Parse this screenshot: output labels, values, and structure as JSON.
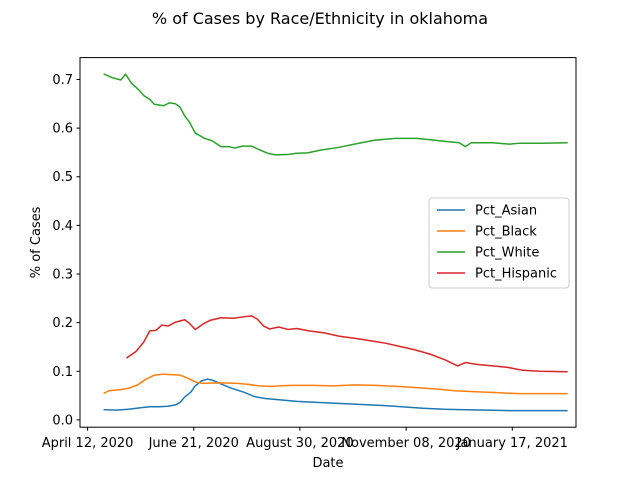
{
  "chart_data": {
    "type": "line",
    "title": "% of Cases by Race/Ethnicity in oklahoma",
    "xlabel": "Date",
    "ylabel": "% of Cases",
    "ylim": [
      -0.015,
      0.745
    ],
    "xlim": [
      "2020-04-07",
      "2021-02-28"
    ],
    "yticks": [
      "0.0",
      "0.1",
      "0.2",
      "0.3",
      "0.4",
      "0.5",
      "0.6",
      "0.7"
    ],
    "xticks": [
      {
        "date": "2020-04-12",
        "label": "April 12, 2020"
      },
      {
        "date": "2020-06-21",
        "label": "June 21, 2020"
      },
      {
        "date": "2020-08-30",
        "label": "August 30, 2020"
      },
      {
        "date": "2020-11-08",
        "label": "November 08, 2020"
      },
      {
        "date": "2021-01-17",
        "label": "January 17, 2021"
      }
    ],
    "legend_position": "center-right",
    "grid": false,
    "series": [
      {
        "name": "Pct_Asian",
        "color": "#1f77b4",
        "points": [
          [
            "2020-04-23",
            0.021
          ],
          [
            "2020-05-01",
            0.02
          ],
          [
            "2020-05-09",
            0.022
          ],
          [
            "2020-05-17",
            0.025
          ],
          [
            "2020-05-23",
            0.027
          ],
          [
            "2020-05-29",
            0.027
          ],
          [
            "2020-06-04",
            0.028
          ],
          [
            "2020-06-09",
            0.031
          ],
          [
            "2020-06-12",
            0.036
          ],
          [
            "2020-06-15",
            0.047
          ],
          [
            "2020-06-19",
            0.057
          ],
          [
            "2020-06-22",
            0.07
          ],
          [
            "2020-06-26",
            0.08
          ],
          [
            "2020-06-30",
            0.084
          ],
          [
            "2020-07-04",
            0.081
          ],
          [
            "2020-07-09",
            0.074
          ],
          [
            "2020-07-16",
            0.065
          ],
          [
            "2020-07-24",
            0.057
          ],
          [
            "2020-07-31",
            0.048
          ],
          [
            "2020-08-07",
            0.044
          ],
          [
            "2020-08-18",
            0.041
          ],
          [
            "2020-08-28",
            0.038
          ],
          [
            "2020-09-10",
            0.036
          ],
          [
            "2020-09-24",
            0.034
          ],
          [
            "2020-10-08",
            0.032
          ],
          [
            "2020-10-22",
            0.03
          ],
          [
            "2020-11-05",
            0.027
          ],
          [
            "2020-11-19",
            0.024
          ],
          [
            "2020-12-03",
            0.022
          ],
          [
            "2020-12-17",
            0.021
          ],
          [
            "2021-01-01",
            0.02
          ],
          [
            "2021-01-15",
            0.019
          ],
          [
            "2021-02-01",
            0.019
          ],
          [
            "2021-02-22",
            0.019
          ]
        ]
      },
      {
        "name": "Pct_Black",
        "color": "#ff7f0e",
        "points": [
          [
            "2020-04-23",
            0.055
          ],
          [
            "2020-04-26",
            0.06
          ],
          [
            "2020-05-03",
            0.062
          ],
          [
            "2020-05-09",
            0.065
          ],
          [
            "2020-05-15",
            0.072
          ],
          [
            "2020-05-20",
            0.083
          ],
          [
            "2020-05-26",
            0.092
          ],
          [
            "2020-06-01",
            0.094
          ],
          [
            "2020-06-06",
            0.093
          ],
          [
            "2020-06-12",
            0.092
          ],
          [
            "2020-06-17",
            0.086
          ],
          [
            "2020-06-22",
            0.078
          ],
          [
            "2020-06-27",
            0.075
          ],
          [
            "2020-07-04",
            0.076
          ],
          [
            "2020-07-12",
            0.076
          ],
          [
            "2020-07-20",
            0.075
          ],
          [
            "2020-07-27",
            0.073
          ],
          [
            "2020-08-03",
            0.07
          ],
          [
            "2020-08-10",
            0.069
          ],
          [
            "2020-08-17",
            0.07
          ],
          [
            "2020-08-24",
            0.071
          ],
          [
            "2020-09-07",
            0.071
          ],
          [
            "2020-09-21",
            0.07
          ],
          [
            "2020-10-05",
            0.072
          ],
          [
            "2020-10-19",
            0.071
          ],
          [
            "2020-11-02",
            0.069
          ],
          [
            "2020-11-16",
            0.066
          ],
          [
            "2020-11-30",
            0.063
          ],
          [
            "2020-12-10",
            0.06
          ],
          [
            "2020-12-24",
            0.058
          ],
          [
            "2021-01-07",
            0.056
          ],
          [
            "2021-01-21",
            0.054
          ],
          [
            "2021-02-04",
            0.054
          ],
          [
            "2021-02-22",
            0.054
          ]
        ]
      },
      {
        "name": "Pct_White",
        "color": "#2ca02c",
        "points": [
          [
            "2020-04-23",
            0.711
          ],
          [
            "2020-04-28",
            0.704
          ],
          [
            "2020-05-04",
            0.699
          ],
          [
            "2020-05-07",
            0.711
          ],
          [
            "2020-05-11",
            0.692
          ],
          [
            "2020-05-16",
            0.678
          ],
          [
            "2020-05-19",
            0.667
          ],
          [
            "2020-05-23",
            0.659
          ],
          [
            "2020-05-26",
            0.649
          ],
          [
            "2020-06-01",
            0.646
          ],
          [
            "2020-06-05",
            0.652
          ],
          [
            "2020-06-09",
            0.65
          ],
          [
            "2020-06-12",
            0.643
          ],
          [
            "2020-06-15",
            0.625
          ],
          [
            "2020-06-18",
            0.613
          ],
          [
            "2020-06-22",
            0.59
          ],
          [
            "2020-06-28",
            0.579
          ],
          [
            "2020-07-03",
            0.574
          ],
          [
            "2020-07-09",
            0.562
          ],
          [
            "2020-07-14",
            0.562
          ],
          [
            "2020-07-18",
            0.559
          ],
          [
            "2020-07-23",
            0.563
          ],
          [
            "2020-07-29",
            0.563
          ],
          [
            "2020-08-03",
            0.556
          ],
          [
            "2020-08-09",
            0.548
          ],
          [
            "2020-08-14",
            0.545
          ],
          [
            "2020-08-23",
            0.546
          ],
          [
            "2020-08-27",
            0.548
          ],
          [
            "2020-09-04",
            0.549
          ],
          [
            "2020-09-13",
            0.555
          ],
          [
            "2020-09-24",
            0.56
          ],
          [
            "2020-10-05",
            0.567
          ],
          [
            "2020-10-18",
            0.575
          ],
          [
            "2020-11-01",
            0.579
          ],
          [
            "2020-11-15",
            0.579
          ],
          [
            "2020-11-24",
            0.576
          ],
          [
            "2020-12-03",
            0.573
          ],
          [
            "2020-12-13",
            0.57
          ],
          [
            "2020-12-17",
            0.562
          ],
          [
            "2020-12-21",
            0.57
          ],
          [
            "2021-01-04",
            0.57
          ],
          [
            "2021-01-15",
            0.567
          ],
          [
            "2021-01-22",
            0.569
          ],
          [
            "2021-02-05",
            0.569
          ],
          [
            "2021-02-22",
            0.57
          ]
        ]
      },
      {
        "name": "Pct_Hispanic",
        "color": "#d62728",
        "points": [
          [
            "2020-05-08",
            0.128
          ],
          [
            "2020-05-14",
            0.141
          ],
          [
            "2020-05-19",
            0.16
          ],
          [
            "2020-05-23",
            0.183
          ],
          [
            "2020-05-27",
            0.184
          ],
          [
            "2020-05-31",
            0.195
          ],
          [
            "2020-06-04",
            0.193
          ],
          [
            "2020-06-09",
            0.201
          ],
          [
            "2020-06-15",
            0.206
          ],
          [
            "2020-06-18",
            0.199
          ],
          [
            "2020-06-22",
            0.186
          ],
          [
            "2020-06-27",
            0.197
          ],
          [
            "2020-07-02",
            0.205
          ],
          [
            "2020-07-09",
            0.21
          ],
          [
            "2020-07-17",
            0.209
          ],
          [
            "2020-07-24",
            0.212
          ],
          [
            "2020-07-29",
            0.214
          ],
          [
            "2020-08-02",
            0.207
          ],
          [
            "2020-08-06",
            0.193
          ],
          [
            "2020-08-10",
            0.187
          ],
          [
            "2020-08-16",
            0.191
          ],
          [
            "2020-08-22",
            0.186
          ],
          [
            "2020-08-28",
            0.188
          ],
          [
            "2020-09-05",
            0.183
          ],
          [
            "2020-09-15",
            0.179
          ],
          [
            "2020-09-25",
            0.172
          ],
          [
            "2020-10-05",
            0.168
          ],
          [
            "2020-10-15",
            0.163
          ],
          [
            "2020-10-25",
            0.158
          ],
          [
            "2020-11-04",
            0.151
          ],
          [
            "2020-11-14",
            0.144
          ],
          [
            "2020-11-24",
            0.135
          ],
          [
            "2020-12-04",
            0.123
          ],
          [
            "2020-12-12",
            0.111
          ],
          [
            "2020-12-17",
            0.118
          ],
          [
            "2020-12-25",
            0.114
          ],
          [
            "2021-01-04",
            0.111
          ],
          [
            "2021-01-14",
            0.108
          ],
          [
            "2021-01-24",
            0.102
          ],
          [
            "2021-02-04",
            0.1
          ],
          [
            "2021-02-22",
            0.099
          ]
        ]
      }
    ]
  }
}
